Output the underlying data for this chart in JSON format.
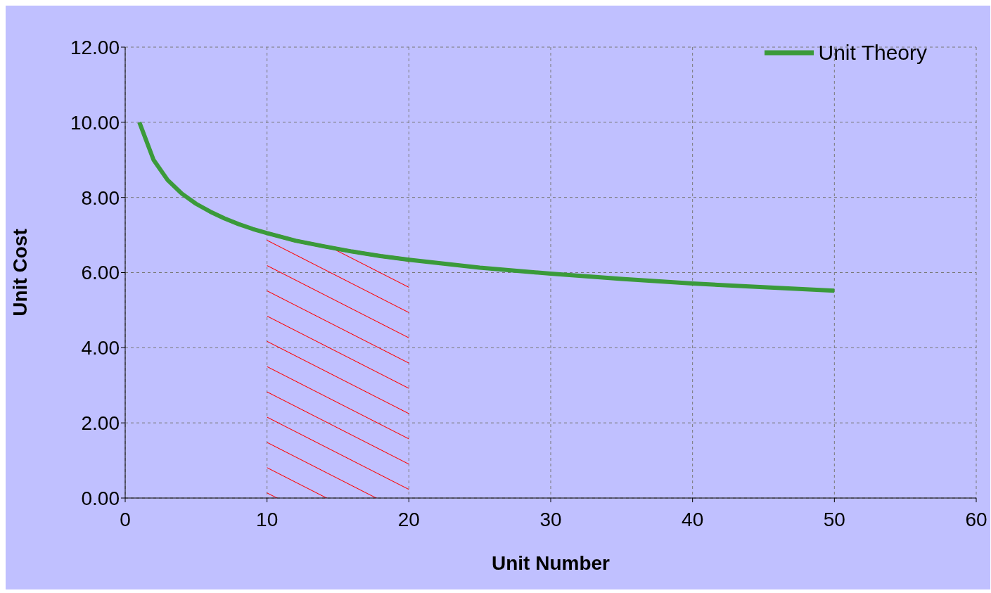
{
  "chart_data": {
    "type": "line",
    "xlabel": "Unit Number",
    "ylabel": "Unit Cost",
    "series": [
      {
        "type": "area",
        "color": "#ff0000",
        "x": [
          10,
          12,
          14,
          15,
          16,
          18,
          20
        ],
        "values": [
          7.05,
          6.85,
          6.7,
          6.63,
          6.56,
          6.44,
          6.34
        ]
      },
      {
        "name": "Unit Theory",
        "color": "#3a9a3a",
        "x": [
          1,
          2,
          3,
          4,
          5,
          6,
          7,
          8,
          9,
          10,
          12,
          14,
          15,
          16,
          18,
          20,
          25,
          30,
          35,
          40,
          45,
          50
        ],
        "values": [
          10.0,
          9.0,
          8.46,
          8.1,
          7.83,
          7.62,
          7.44,
          7.29,
          7.16,
          7.05,
          6.85,
          6.7,
          6.63,
          6.56,
          6.44,
          6.34,
          6.13,
          5.97,
          5.83,
          5.71,
          5.61,
          5.52
        ]
      }
    ],
    "xlim": [
      0,
      60
    ],
    "xticks": [
      0,
      10,
      20,
      30,
      40,
      50,
      60
    ],
    "ylim": [
      0,
      12
    ],
    "yticks": [
      {
        "value": 0,
        "label": "0.00"
      },
      {
        "value": 2,
        "label": "2.00"
      },
      {
        "value": 4,
        "label": "4.00"
      },
      {
        "value": 6,
        "label": "6.00"
      },
      {
        "value": 8,
        "label": "8.00"
      },
      {
        "value": 10,
        "label": "10.00"
      },
      {
        "value": 12,
        "label": "12.00"
      }
    ],
    "grid": true,
    "legend": "top right",
    "line_style": "solid",
    "marker": "none"
  }
}
